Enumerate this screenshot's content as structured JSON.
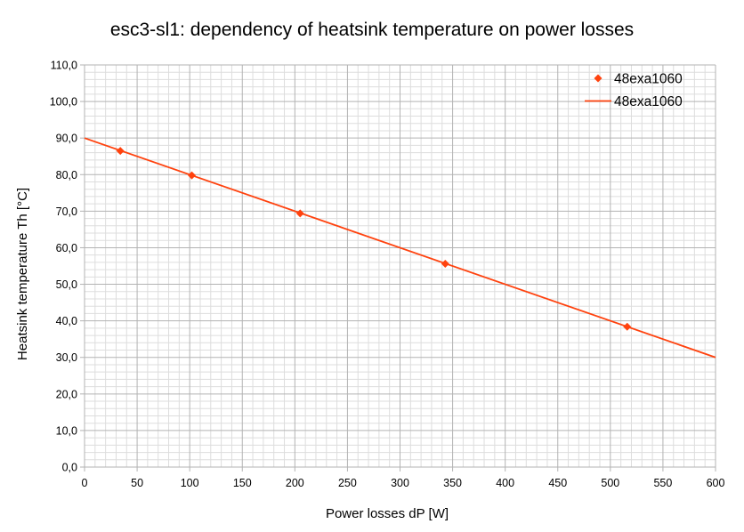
{
  "chart_data": {
    "type": "scatter",
    "title": "esc3-sl1: dependency of heatsink temperature on power losses",
    "xlabel": "Power losses dP [W]",
    "ylabel": "Heatsink temperature Th [°C]",
    "xlim": [
      0,
      600
    ],
    "ylim": [
      0,
      110
    ],
    "x_ticks": [
      "0",
      "50",
      "100",
      "150",
      "200",
      "250",
      "300",
      "350",
      "400",
      "450",
      "500",
      "550",
      "600"
    ],
    "y_ticks": [
      "0,0",
      "10,0",
      "20,0",
      "30,0",
      "40,0",
      "50,0",
      "60,0",
      "70,0",
      "80,0",
      "90,0",
      "100,0",
      "110,0"
    ],
    "grid": true,
    "legend_position": "top-right",
    "series": [
      {
        "name": "48exa1060",
        "kind": "markers",
        "marker": "diamond",
        "color": "#ff420e",
        "points": [
          [
            34,
            86.5
          ],
          [
            102,
            79.8
          ],
          [
            205,
            69.4
          ],
          [
            343,
            55.6
          ],
          [
            516,
            38.4
          ]
        ]
      },
      {
        "name": "48exa1060",
        "kind": "trendline",
        "color": "#ff420e",
        "points": [
          [
            0,
            90.0
          ],
          [
            600,
            30.0
          ]
        ]
      }
    ]
  }
}
